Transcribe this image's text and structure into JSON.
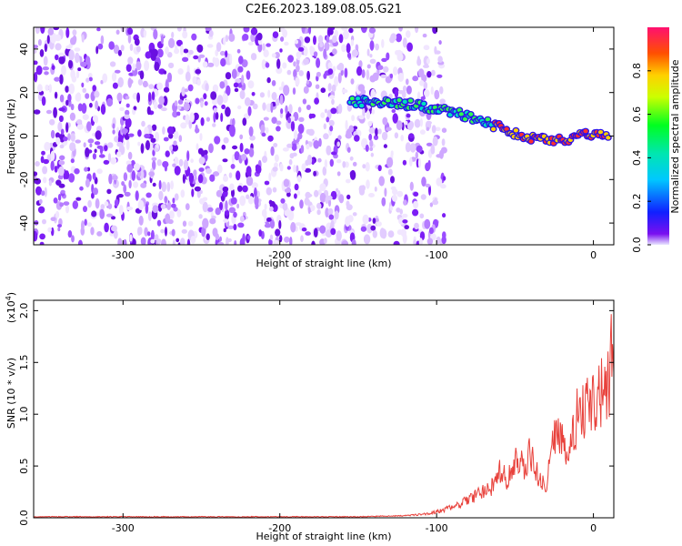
{
  "figure_title": "C2E6.2023.189.08.05.G21",
  "chart_data": [
    {
      "type": "heatmap",
      "xlabel": "Height of straight line (km)",
      "ylabel": "Frequency (Hz)",
      "xlim": [
        -357,
        13
      ],
      "ylim": [
        -50,
        50
      ],
      "x_ticks": [
        -300,
        -200,
        -100,
        0
      ],
      "y_ticks": [
        40,
        20,
        0,
        -20,
        -40
      ],
      "colorbar": {
        "label": "Normalized spectral amplitude",
        "range": [
          0.0,
          1.0
        ],
        "ticks": [
          "0.0",
          "0.2",
          "0.4",
          "0.6",
          "0.8"
        ]
      },
      "features": {
        "noise_cutoff_km": -95,
        "signal_track": {
          "x": [
            -155,
            -140,
            -125,
            -110,
            -100,
            -90,
            -80,
            -70,
            -60,
            -50,
            -40,
            -30,
            -20,
            -10,
            0,
            10
          ],
          "y": [
            16,
            15.5,
            15,
            14,
            12,
            11,
            9,
            7,
            4,
            1,
            -1,
            -2,
            -2,
            0,
            1,
            1
          ]
        }
      }
    },
    {
      "type": "line",
      "xlabel": "Height of straight line (km)",
      "ylabel": "SNR (10 * v/v)",
      "y_multiplier": "(x10",
      "y_multiplier_exp": "4",
      "y_multiplier_close": ")",
      "xlim": [
        -357,
        13
      ],
      "ylim": [
        0,
        2.1
      ],
      "x_ticks": [
        -300,
        -200,
        -100,
        0
      ],
      "y_ticks": [
        "0.0",
        "0.5",
        "1.0",
        "1.5",
        "2.0"
      ],
      "line_color": "#e8413b",
      "series": {
        "x": [
          -357,
          -300,
          -250,
          -200,
          -150,
          -120,
          -105,
          -95,
          -85,
          -75,
          -65,
          -60,
          -55,
          -50,
          -45,
          -40,
          -35,
          -30,
          -25,
          -20,
          -15,
          -10,
          -5,
          0,
          5,
          10,
          13
        ],
        "y": [
          0.01,
          0.01,
          0.01,
          0.01,
          0.01,
          0.02,
          0.04,
          0.08,
          0.13,
          0.22,
          0.3,
          0.45,
          0.38,
          0.55,
          0.5,
          0.62,
          0.38,
          0.3,
          0.8,
          0.7,
          0.65,
          1.0,
          1.05,
          1.1,
          1.2,
          1.35,
          1.8
        ]
      }
    }
  ]
}
